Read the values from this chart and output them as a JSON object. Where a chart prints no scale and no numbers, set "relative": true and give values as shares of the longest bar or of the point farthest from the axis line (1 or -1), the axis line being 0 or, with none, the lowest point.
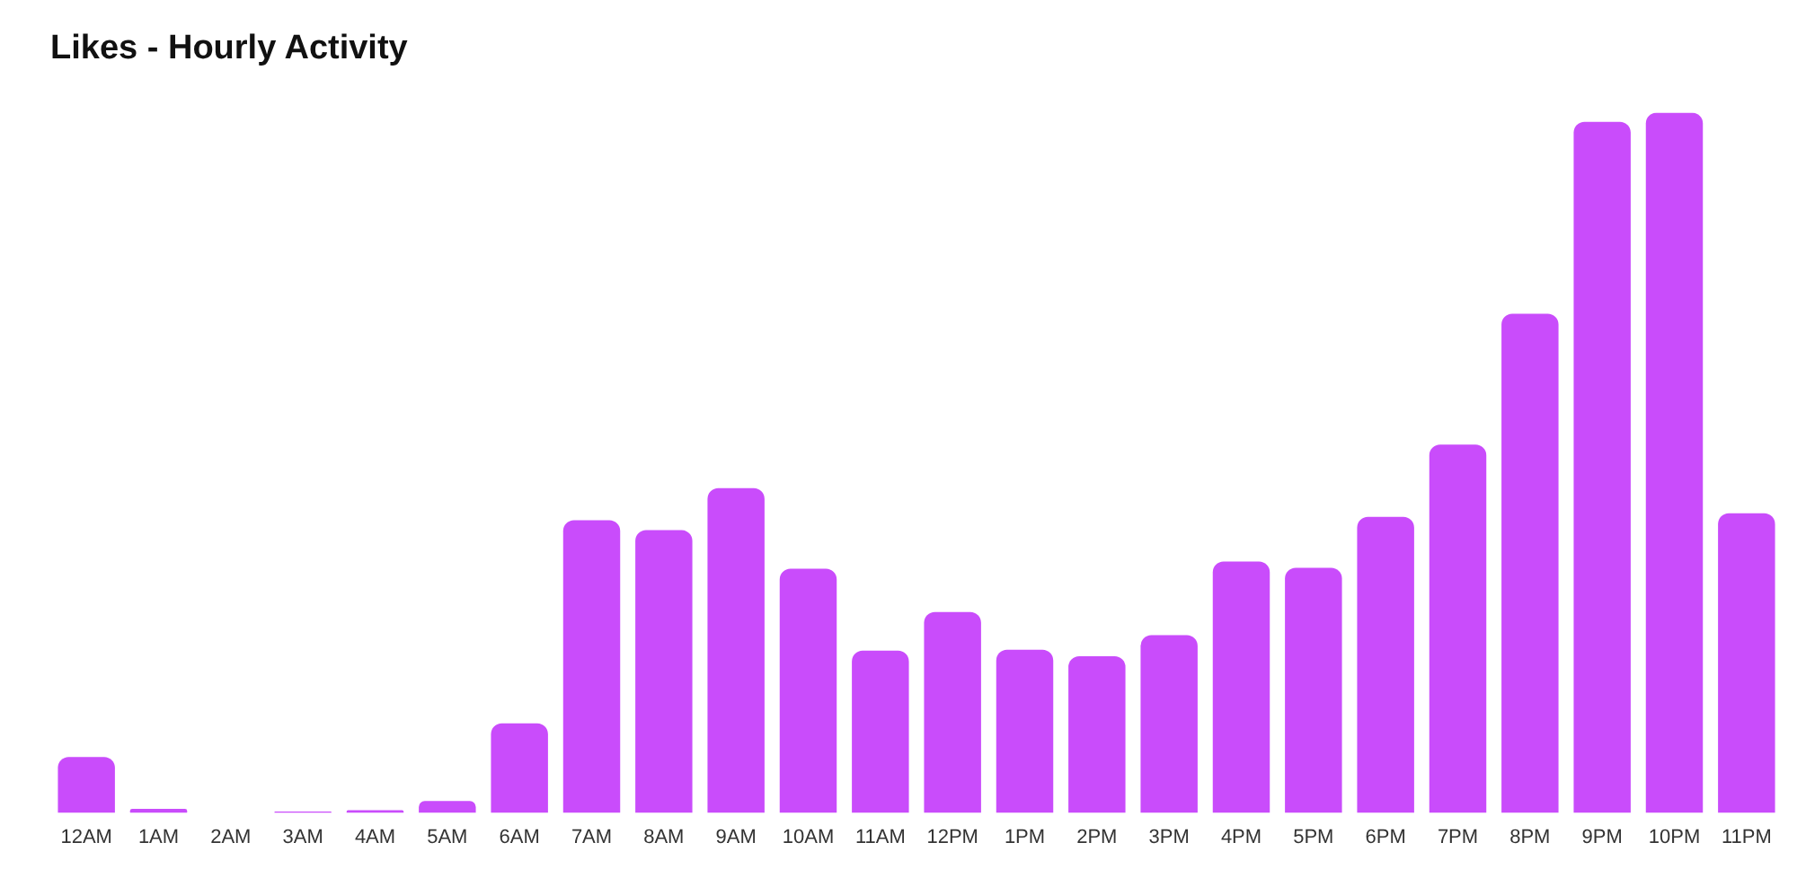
{
  "chart_data": {
    "type": "bar",
    "title": "Likes - Hourly Activity",
    "relative": true,
    "color": "#c94cfb",
    "categories": [
      "12AM",
      "1AM",
      "2AM",
      "3AM",
      "4AM",
      "5AM",
      "6AM",
      "7AM",
      "8AM",
      "9AM",
      "10AM",
      "11AM",
      "12PM",
      "1PM",
      "2PM",
      "3PM",
      "4PM",
      "5PM",
      "6PM",
      "7PM",
      "8PM",
      "9PM",
      "10PM",
      "11PM"
    ],
    "values": [
      0.08,
      0.006,
      0,
      0.002,
      0.004,
      0.017,
      0.128,
      0.418,
      0.404,
      0.464,
      0.349,
      0.232,
      0.287,
      0.233,
      0.224,
      0.254,
      0.359,
      0.35,
      0.423,
      0.526,
      0.713,
      0.987,
      1,
      0.428
    ]
  }
}
